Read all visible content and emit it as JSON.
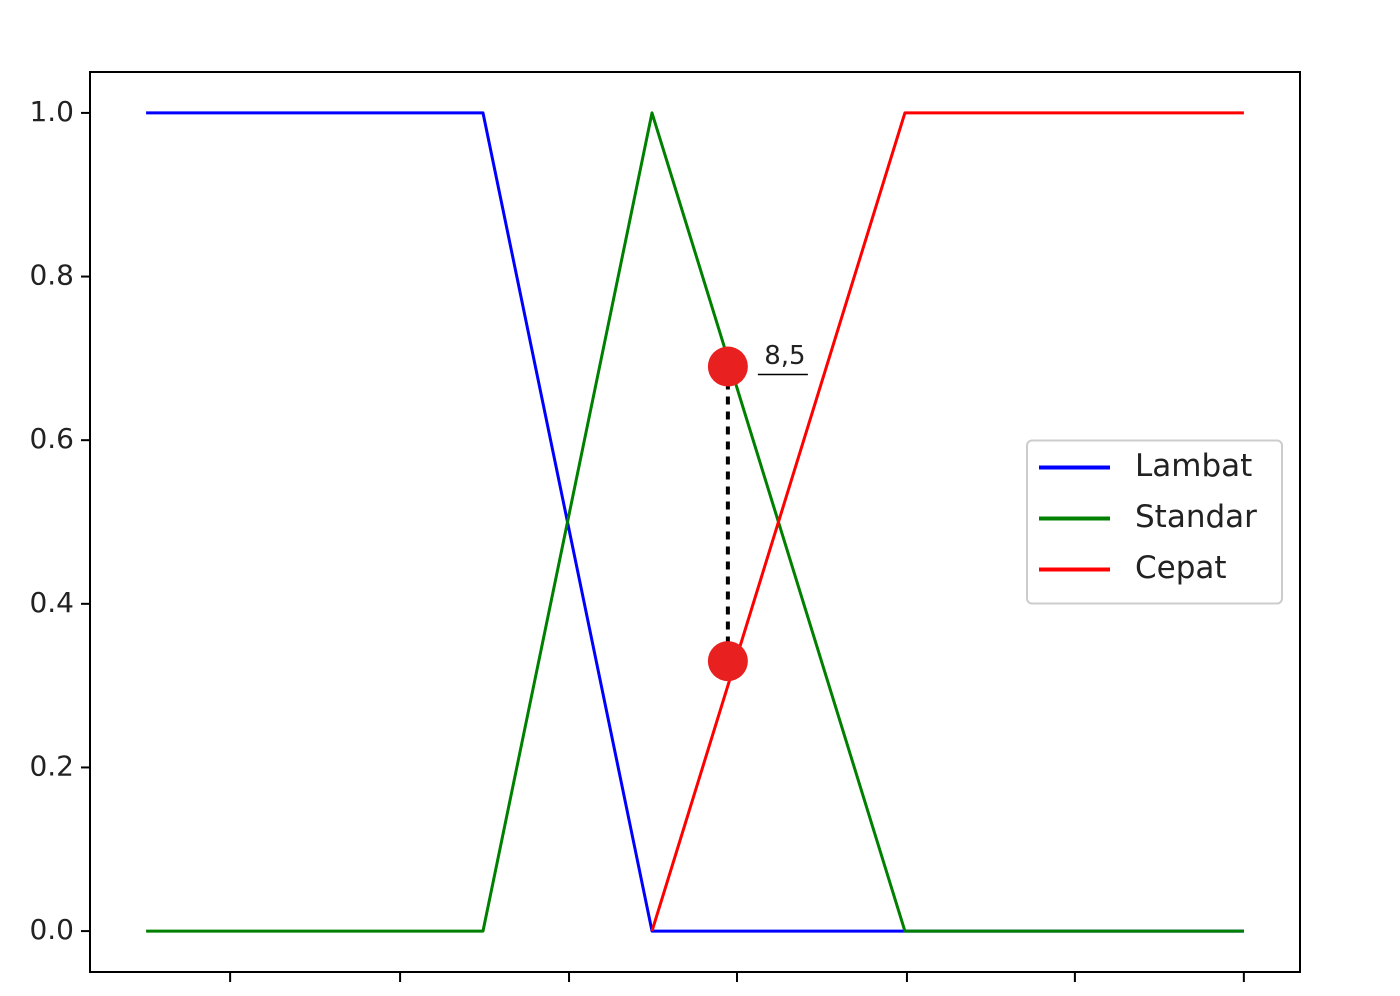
{
  "chart_data": {
    "type": "line",
    "x": [
      -3,
      3.66,
      7,
      12,
      18.7
    ],
    "series": [
      {
        "name": "Lambat",
        "color": "#0000ff",
        "values": [
          1,
          1,
          0,
          0,
          0
        ]
      },
      {
        "name": "Standar",
        "color": "#008000",
        "values": [
          0,
          0,
          1,
          0,
          0
        ]
      },
      {
        "name": "Cepat",
        "color": "#ff0000",
        "values": [
          null,
          null,
          0,
          1,
          1
        ]
      }
    ],
    "xlim": [
      -4.11,
      19.81
    ],
    "xticks": [
      -1.34,
      2.02,
      5.36,
      8.68,
      12.04,
      15.36,
      18.7
    ],
    "ylim": [
      -0.05,
      1.05
    ],
    "yticks": [
      {
        "value": 0,
        "label": "0.0"
      },
      0.2,
      0.4,
      0.6,
      0.8,
      {
        "value": 1,
        "label": "1.0"
      }
    ],
    "legend": "center right",
    "annotation": {
      "text": "8,5",
      "x": 8.5,
      "points": [
        0.69,
        0.33
      ],
      "color": "#e82020"
    }
  }
}
